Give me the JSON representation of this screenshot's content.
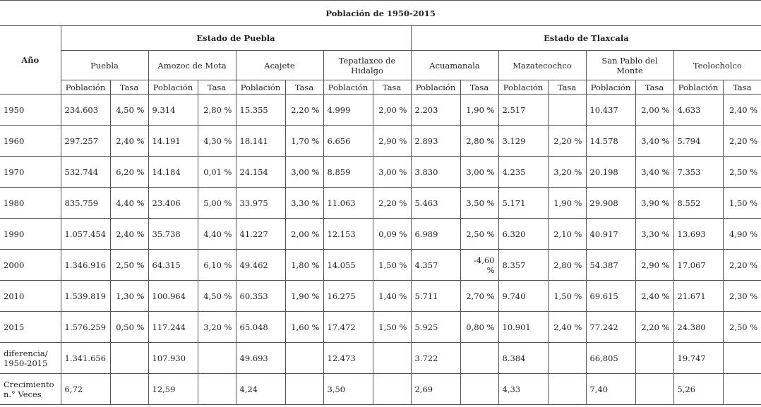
{
  "title": "Población de 1950-2015",
  "year_header": "Año",
  "states": [
    "Estado de Puebla",
    "Estado de Tlaxcala"
  ],
  "municipalities": [
    "Puebla",
    "Amozoc de Mota",
    "Acajete",
    "Tepatlaxco de Hidalgo",
    "Acuamanala",
    "Mazatecochco",
    "San Pablo del Monte",
    "Teolocholco"
  ],
  "subheaders": [
    "Población",
    "Tasa"
  ],
  "rows": [
    {
      "label": "1950",
      "cells": [
        "234.603",
        "4,50 %",
        "9.314",
        "2,80 %",
        "15.355",
        "2,20 %",
        "4.999",
        "2,00 %",
        "2.203",
        "1,90 %",
        "2.517",
        null,
        "10.437",
        "2,00 %",
        "4.633",
        "2,40 %"
      ]
    },
    {
      "label": "1960",
      "cells": [
        "297.257",
        "2,40 %",
        "14.191",
        "4,30 %",
        "18.141",
        "1,70 %",
        "6.656",
        "2,90 %",
        "2.893",
        "2,80 %",
        "3.129",
        "2,20 %",
        "14.578",
        "3,40 %",
        "5.794",
        "2,20 %"
      ]
    },
    {
      "label": "1970",
      "cells": [
        "532.744",
        "6,20 %",
        "14.184",
        "0,01 %",
        "24.154",
        "3,00 %",
        "8.859",
        "3,00 %",
        "3.830",
        "3,00 %",
        "4.235",
        "3,20 %",
        "20.198",
        "3,40 %",
        "7.353",
        "2,50 %"
      ]
    },
    {
      "label": "1980",
      "cells": [
        "835.759",
        "4,40 %",
        "23.406",
        "5,00 %",
        "33.975",
        "3,30 %",
        "11.063",
        "2,20 %",
        "5.463",
        "3,50 %",
        "5.171",
        "1,90 %",
        "29.908",
        "3,90 %",
        "8.552",
        "1,50 %"
      ]
    },
    {
      "label": "1990",
      "cells": [
        "1.057.454",
        "2,40 %",
        "35.738",
        "4,40 %",
        "41.227",
        "2,00 %",
        "12.153",
        "0,09 %",
        "6.989",
        "2,50 %",
        "6.320",
        "2,10 %",
        "40.917",
        "3,30 %",
        "13.693",
        "4,90 %"
      ]
    },
    {
      "label": "2000",
      "cells": [
        "1.346.916",
        "2,50 %",
        "64.315",
        "6,10 %",
        "49.462",
        "1,80 %",
        "14.055",
        "1,50 %",
        "4.357",
        "-4,60 %",
        "8.357",
        "2,80 %",
        "54.387",
        "2,90 %",
        "17.067",
        "2,20 %"
      ]
    },
    {
      "label": "2010",
      "cells": [
        "1.539.819",
        "1,30 %",
        "100.964",
        "4,50 %",
        "60.353",
        "1,90 %",
        "16.275",
        "1,40 %",
        "5.711",
        "2,70 %",
        "9.740",
        "1,50 %",
        "69.615",
        "2,40 %",
        "21.671",
        "2,30 %"
      ]
    },
    {
      "label": "2015",
      "cells": [
        "1.576.259",
        "0,50 %",
        "117.244",
        "3,20 %",
        "65.048",
        "1,60 %",
        "17.472",
        "1,50 %",
        "5.925",
        "0,80 %",
        "10.901",
        "2,40 %",
        "77.242",
        "2,20 %",
        "24.380",
        "2,50 %"
      ]
    },
    {
      "label": "diferencia/ 1950-2015",
      "cells": [
        "1.341.656",
        null,
        "107.930",
        null,
        "49.693",
        null,
        "12.473",
        null,
        "3.722",
        null,
        "8.384",
        null,
        "66,805",
        null,
        "19.747",
        null
      ]
    },
    {
      "label": "Crecimiento n.° Veces",
      "cells": [
        "6,72",
        null,
        "12,59",
        null,
        "4,24",
        null,
        "3,50",
        null,
        "2,69",
        null,
        "4,33",
        null,
        "7,40",
        null,
        "5,26",
        null
      ]
    }
  ]
}
